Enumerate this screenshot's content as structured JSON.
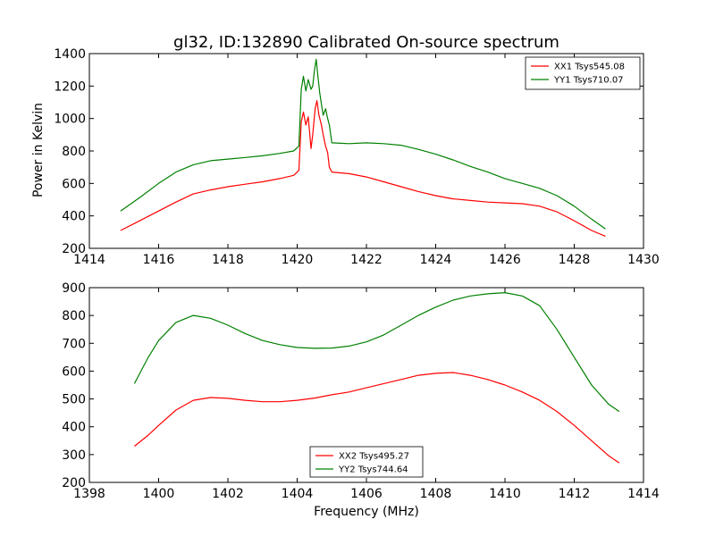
{
  "figure": {
    "title": "gl32, ID:132890 Calibrated On-source spectrum",
    "ylabel": "Power in Kelvin",
    "xlabel": "Frequency (MHz)"
  },
  "chart_data": [
    {
      "type": "line",
      "xlim": [
        1414,
        1430
      ],
      "ylim": [
        200,
        1400
      ],
      "xticks": [
        "1414",
        "1416",
        "1418",
        "1420",
        "1422",
        "1424",
        "1426",
        "1428",
        "1430"
      ],
      "yticks": [
        "200",
        "400",
        "600",
        "800",
        "1000",
        "1200",
        "1400"
      ],
      "legend_position": "top-right",
      "series": [
        {
          "name": "XX1 Tsys545.08",
          "color": "#ff0000",
          "points": [
            [
              1414.9,
              310
            ],
            [
              1415.5,
              375
            ],
            [
              1416.0,
              430
            ],
            [
              1416.5,
              485
            ],
            [
              1417.0,
              535
            ],
            [
              1417.5,
              560
            ],
            [
              1418.0,
              580
            ],
            [
              1418.5,
              595
            ],
            [
              1419.0,
              610
            ],
            [
              1419.5,
              630
            ],
            [
              1419.9,
              650
            ],
            [
              1420.05,
              680
            ],
            [
              1420.12,
              980
            ],
            [
              1420.18,
              1040
            ],
            [
              1420.25,
              960
            ],
            [
              1420.32,
              1010
            ],
            [
              1420.4,
              815
            ],
            [
              1420.45,
              900
            ],
            [
              1420.52,
              1060
            ],
            [
              1420.57,
              1110
            ],
            [
              1420.63,
              1020
            ],
            [
              1420.7,
              960
            ],
            [
              1420.75,
              900
            ],
            [
              1420.82,
              830
            ],
            [
              1420.88,
              790
            ],
            [
              1420.93,
              700
            ],
            [
              1421.0,
              670
            ],
            [
              1421.5,
              660
            ],
            [
              1422.0,
              640
            ],
            [
              1422.5,
              610
            ],
            [
              1423.0,
              580
            ],
            [
              1423.5,
              550
            ],
            [
              1424.0,
              525
            ],
            [
              1424.5,
              505
            ],
            [
              1425.0,
              495
            ],
            [
              1425.5,
              485
            ],
            [
              1426.0,
              480
            ],
            [
              1426.5,
              475
            ],
            [
              1427.0,
              460
            ],
            [
              1427.5,
              425
            ],
            [
              1428.0,
              370
            ],
            [
              1428.5,
              310
            ],
            [
              1428.9,
              275
            ]
          ]
        },
        {
          "name": "YY1 Tsys710.07",
          "color": "#008000",
          "points": [
            [
              1414.9,
              430
            ],
            [
              1415.5,
              520
            ],
            [
              1416.0,
              600
            ],
            [
              1416.5,
              670
            ],
            [
              1417.0,
              715
            ],
            [
              1417.5,
              740
            ],
            [
              1418.0,
              750
            ],
            [
              1418.5,
              760
            ],
            [
              1419.0,
              770
            ],
            [
              1419.5,
              785
            ],
            [
              1419.9,
              800
            ],
            [
              1420.05,
              830
            ],
            [
              1420.12,
              1180
            ],
            [
              1420.18,
              1260
            ],
            [
              1420.25,
              1170
            ],
            [
              1420.32,
              1240
            ],
            [
              1420.4,
              1180
            ],
            [
              1420.45,
              1200
            ],
            [
              1420.5,
              1300
            ],
            [
              1420.55,
              1365
            ],
            [
              1420.6,
              1260
            ],
            [
              1420.65,
              1160
            ],
            [
              1420.7,
              1090
            ],
            [
              1420.75,
              1020
            ],
            [
              1420.82,
              1060
            ],
            [
              1420.88,
              1000
            ],
            [
              1420.93,
              960
            ],
            [
              1421.0,
              850
            ],
            [
              1421.5,
              845
            ],
            [
              1422.0,
              850
            ],
            [
              1422.5,
              845
            ],
            [
              1423.0,
              835
            ],
            [
              1423.5,
              810
            ],
            [
              1424.0,
              780
            ],
            [
              1424.5,
              745
            ],
            [
              1425.0,
              705
            ],
            [
              1425.5,
              670
            ],
            [
              1426.0,
              630
            ],
            [
              1426.5,
              600
            ],
            [
              1427.0,
              570
            ],
            [
              1427.5,
              525
            ],
            [
              1428.0,
              460
            ],
            [
              1428.5,
              380
            ],
            [
              1428.9,
              320
            ]
          ]
        }
      ]
    },
    {
      "type": "line",
      "xlim": [
        1398,
        1414
      ],
      "ylim": [
        200,
        900
      ],
      "xticks": [
        "1398",
        "1400",
        "1402",
        "1404",
        "1406",
        "1408",
        "1410",
        "1412",
        "1414"
      ],
      "yticks": [
        "200",
        "300",
        "400",
        "500",
        "600",
        "700",
        "800",
        "900"
      ],
      "legend_position": "bottom-center",
      "series": [
        {
          "name": "XX2 Tsys495.27",
          "color": "#ff0000",
          "points": [
            [
              1399.3,
              330
            ],
            [
              1399.7,
              370
            ],
            [
              1400.0,
              405
            ],
            [
              1400.5,
              460
            ],
            [
              1401.0,
              495
            ],
            [
              1401.5,
              505
            ],
            [
              1402.0,
              502
            ],
            [
              1402.5,
              495
            ],
            [
              1403.0,
              490
            ],
            [
              1403.5,
              490
            ],
            [
              1404.0,
              495
            ],
            [
              1404.5,
              503
            ],
            [
              1405.0,
              515
            ],
            [
              1405.5,
              525
            ],
            [
              1406.0,
              540
            ],
            [
              1406.5,
              555
            ],
            [
              1407.0,
              570
            ],
            [
              1407.5,
              585
            ],
            [
              1408.0,
              592
            ],
            [
              1408.5,
              595
            ],
            [
              1409.0,
              585
            ],
            [
              1409.5,
              570
            ],
            [
              1410.0,
              550
            ],
            [
              1410.5,
              525
            ],
            [
              1411.0,
              495
            ],
            [
              1411.5,
              455
            ],
            [
              1412.0,
              405
            ],
            [
              1412.5,
              350
            ],
            [
              1413.0,
              295
            ],
            [
              1413.3,
              270
            ]
          ]
        },
        {
          "name": "YY2 Tsys744.64",
          "color": "#008000",
          "points": [
            [
              1399.3,
              555
            ],
            [
              1399.7,
              650
            ],
            [
              1400.0,
              710
            ],
            [
              1400.5,
              775
            ],
            [
              1401.0,
              800
            ],
            [
              1401.5,
              790
            ],
            [
              1402.0,
              765
            ],
            [
              1402.5,
              735
            ],
            [
              1403.0,
              710
            ],
            [
              1403.5,
              695
            ],
            [
              1404.0,
              685
            ],
            [
              1404.5,
              682
            ],
            [
              1405.0,
              683
            ],
            [
              1405.5,
              690
            ],
            [
              1406.0,
              705
            ],
            [
              1406.5,
              730
            ],
            [
              1407.0,
              765
            ],
            [
              1407.5,
              800
            ],
            [
              1408.0,
              830
            ],
            [
              1408.5,
              855
            ],
            [
              1409.0,
              870
            ],
            [
              1409.5,
              878
            ],
            [
              1410.0,
              882
            ],
            [
              1410.5,
              870
            ],
            [
              1411.0,
              835
            ],
            [
              1411.5,
              750
            ],
            [
              1412.0,
              650
            ],
            [
              1412.5,
              550
            ],
            [
              1413.0,
              480
            ],
            [
              1413.3,
              455
            ]
          ]
        }
      ]
    }
  ]
}
